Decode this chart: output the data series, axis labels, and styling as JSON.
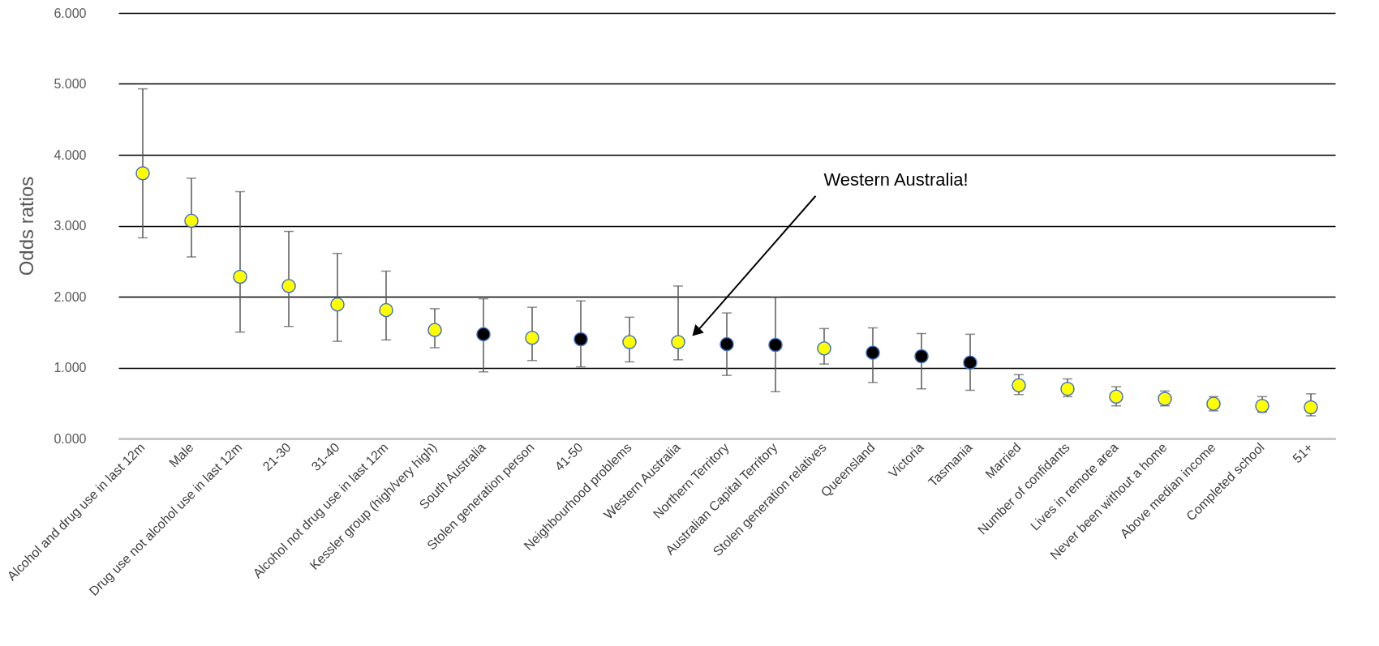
{
  "chart_data": {
    "type": "scatter",
    "ylabel": "Odds ratios",
    "categories": [
      "Alcohol and drug use in last 12m",
      "Male",
      "Drug use not alcohol use in last 12m",
      "21-30",
      "31-40",
      "Alcohol not drug use in last 12m",
      "Kessler group (high/very high)",
      "South Australia",
      "Stolen generation person",
      "41-50",
      "Neighbourhood problems",
      "Western Australia",
      "Northern Territory",
      "Australian Capital Territory",
      "Stolen generation relatives",
      "Queensland",
      "Victoria",
      "Tasmania",
      "Married",
      "Number of confidants",
      "Lives in remote area",
      "Never been without a home",
      "Above median income",
      "Completed school",
      "51+"
    ],
    "values": [
      3.74,
      3.07,
      2.28,
      2.15,
      1.89,
      1.81,
      1.53,
      1.47,
      1.42,
      1.4,
      1.36,
      1.36,
      1.33,
      1.32,
      1.27,
      1.21,
      1.16,
      1.07,
      0.75,
      0.7,
      0.59,
      0.56,
      0.49,
      0.46,
      0.44
    ],
    "errors": [
      [
        2.83,
        4.93
      ],
      [
        2.56,
        3.67
      ],
      [
        1.5,
        3.48
      ],
      [
        1.58,
        2.92
      ],
      [
        1.37,
        2.61
      ],
      [
        1.39,
        2.36
      ],
      [
        1.28,
        1.83
      ],
      [
        0.94,
        1.97
      ],
      [
        1.1,
        1.85
      ],
      [
        1.01,
        1.94
      ],
      [
        1.08,
        1.71
      ],
      [
        1.11,
        2.15
      ],
      [
        0.89,
        1.77
      ],
      [
        0.66,
        1.99
      ],
      [
        1.05,
        1.55
      ],
      [
        0.79,
        1.56
      ],
      [
        0.7,
        1.48
      ],
      [
        0.68,
        1.47
      ],
      [
        0.62,
        0.9
      ],
      [
        0.59,
        0.84
      ],
      [
        0.46,
        0.73
      ],
      [
        0.46,
        0.67
      ],
      [
        0.39,
        0.59
      ],
      [
        0.37,
        0.59
      ],
      [
        0.32,
        0.63
      ]
    ],
    "colors": [
      "#ffff00",
      "#ffff00",
      "#ffff00",
      "#ffff00",
      "#ffff00",
      "#ffff00",
      "#ffff00",
      "#000000",
      "#ffff00",
      "#000000",
      "#ffff00",
      "#ffff00",
      "#000000",
      "#000000",
      "#ffff00",
      "#000000",
      "#000000",
      "#000000",
      "#ffff00",
      "#ffff00",
      "#ffff00",
      "#ffff00",
      "#ffff00",
      "#ffff00",
      "#ffff00"
    ],
    "marker": "circle",
    "ylim": [
      0,
      6
    ],
    "yticks": [
      {
        "value": 0,
        "label": "0.000"
      },
      {
        "value": 1,
        "label": "1.000"
      },
      {
        "value": 2,
        "label": "2.000"
      },
      {
        "value": 3,
        "label": "3.000"
      },
      {
        "value": 4,
        "label": "4.000"
      },
      {
        "value": 5,
        "label": "5.000"
      },
      {
        "value": 6,
        "label": "6.000"
      }
    ],
    "grid": "y",
    "annotations": [
      "Western Australia!"
    ]
  }
}
